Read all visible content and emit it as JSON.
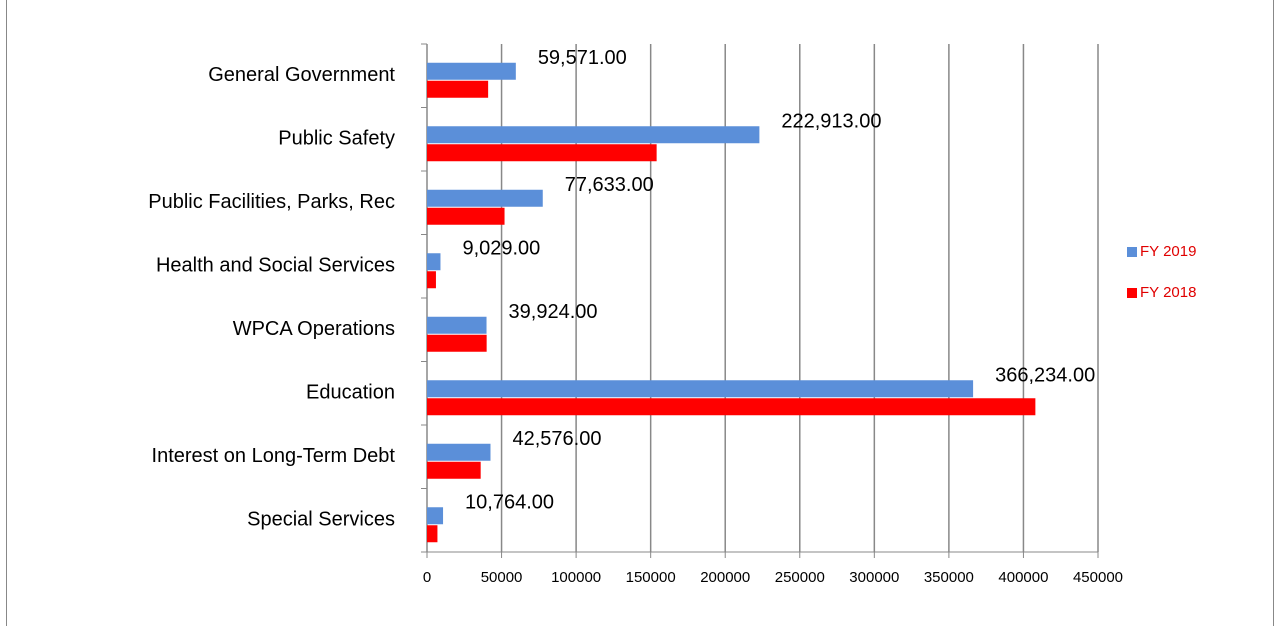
{
  "chart_data": {
    "type": "bar",
    "orientation": "horizontal",
    "categories": [
      "General Government",
      "Public Safety",
      "Public Facilities, Parks, Rec",
      "Health and Social Services",
      "WPCA Operations",
      "Education",
      "Interest on Long-Term Debt",
      "Special Services"
    ],
    "series": [
      {
        "name": "FY 2019",
        "color": "#5b8fd9",
        "values": [
          59571,
          222913,
          77633,
          9029,
          39924,
          366234,
          42576,
          10764
        ],
        "value_labels": [
          "59,571.00",
          "222,913.00",
          "77,633.00",
          "9,029.00",
          "39,924.00",
          "366,234.00",
          "42,576.00",
          "10,764.00"
        ]
      },
      {
        "name": "FY 2018",
        "color": "#ff0000",
        "values": [
          41000,
          154000,
          52000,
          6000,
          40000,
          408000,
          36000,
          7000
        ]
      }
    ],
    "xlim": [
      0,
      450000
    ],
    "xticks": [
      0,
      50000,
      100000,
      150000,
      200000,
      250000,
      300000,
      350000,
      400000,
      450000
    ],
    "grid": true,
    "legend": "right"
  }
}
